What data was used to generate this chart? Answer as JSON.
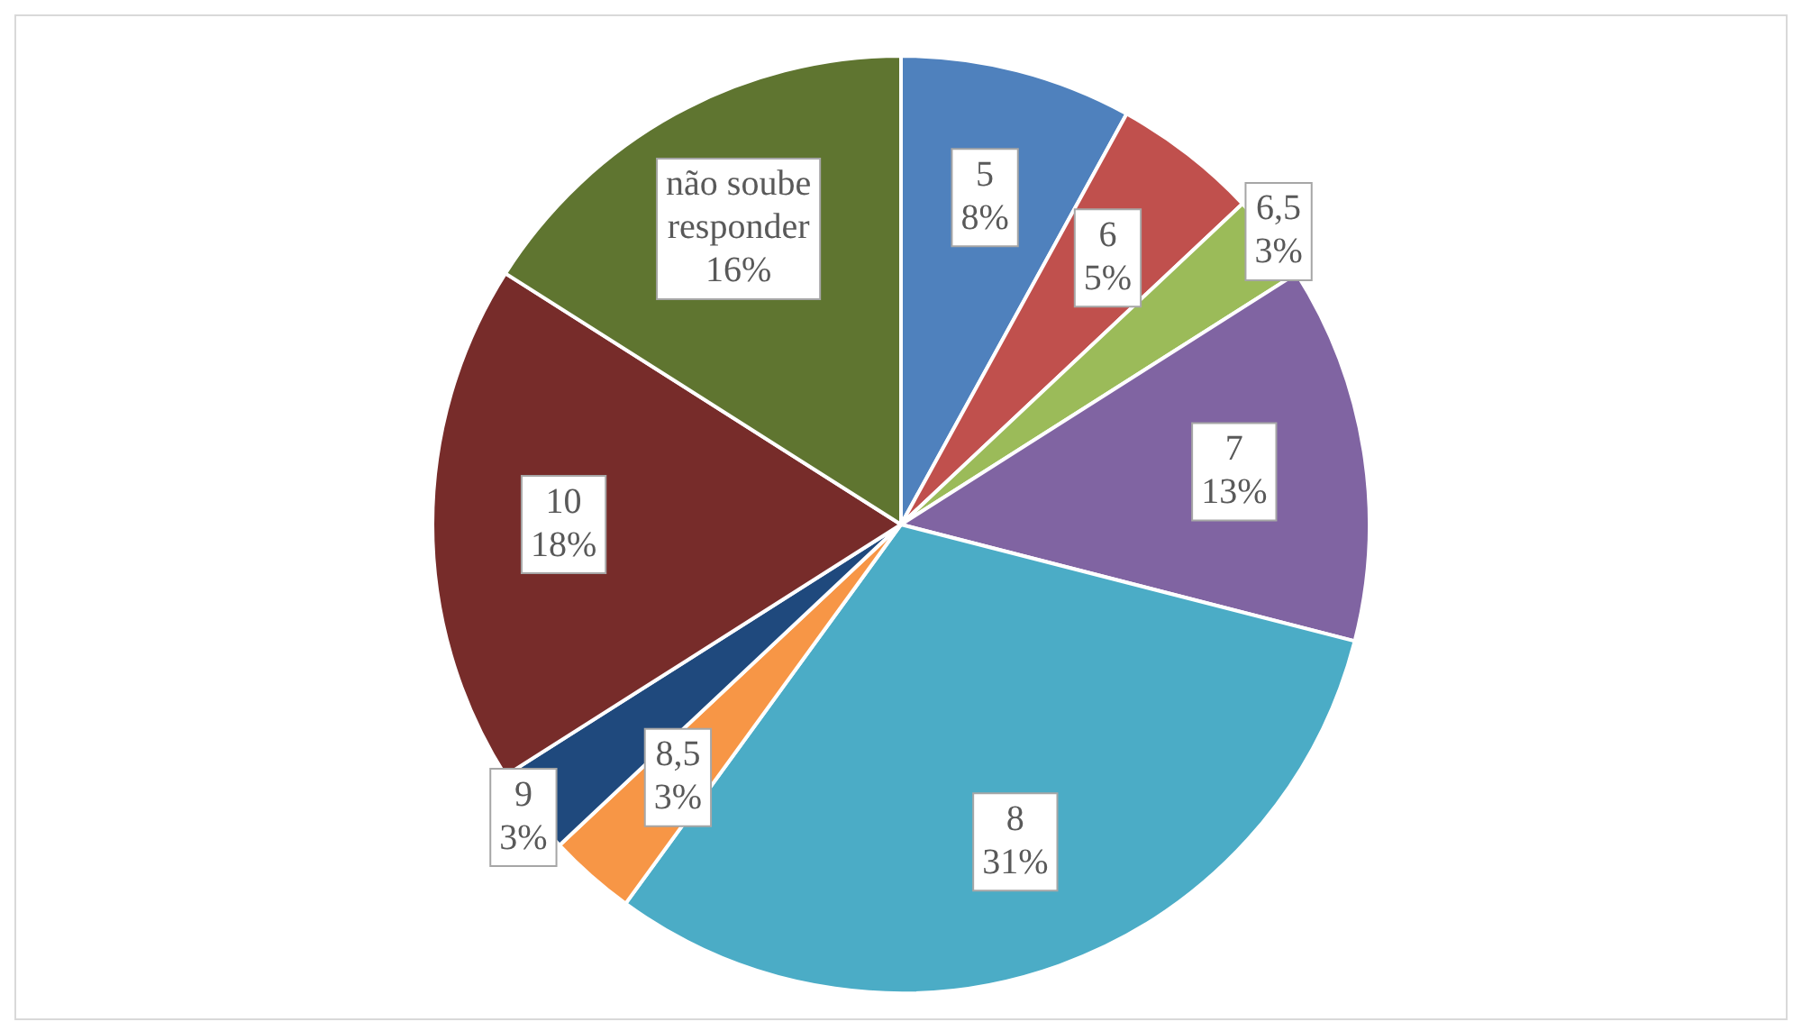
{
  "chart_data": {
    "type": "pie",
    "categories": [
      "5",
      "6",
      "6,5",
      "7",
      "8",
      "8,5",
      "9",
      "10",
      "não soube responder"
    ],
    "values": [
      8,
      5,
      3,
      13,
      31,
      3,
      3,
      18,
      16
    ],
    "value_labels": [
      "8%",
      "5%",
      "3%",
      "13%",
      "31%",
      "3%",
      "3%",
      "18%",
      "16%"
    ],
    "colors": [
      "#4f81bd",
      "#c0504d",
      "#9bbb59",
      "#8064a2",
      "#4bacc6",
      "#f79646",
      "#1f497d",
      "#772c2a",
      "#5f7530"
    ],
    "legend": false
  }
}
